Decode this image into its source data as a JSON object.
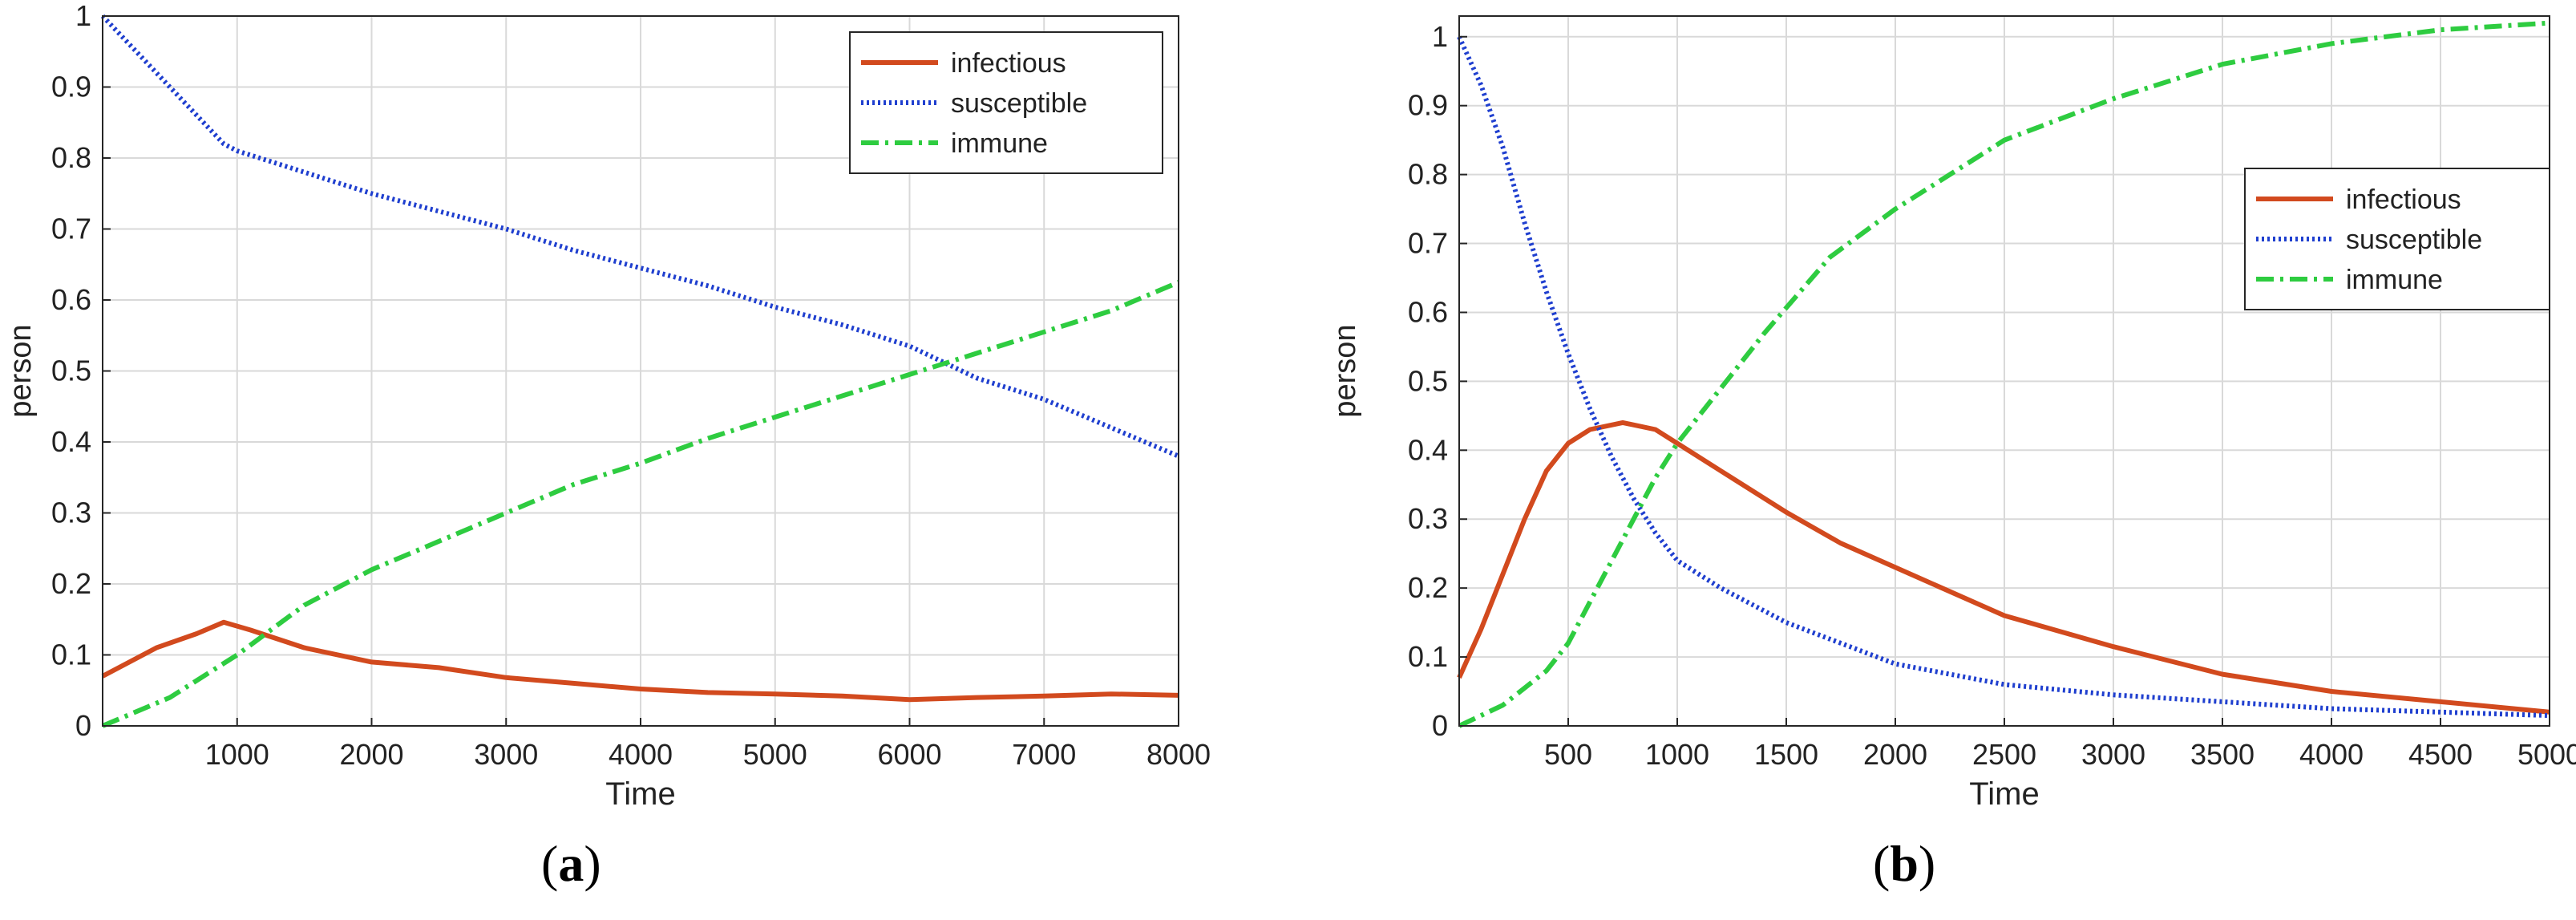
{
  "colors": {
    "infectious": "#d24a1e",
    "susceptible": "#1f3fcf",
    "immune": "#2ecc40",
    "grid": "#d9d9d9",
    "axis": "#262626"
  },
  "chart_data": [
    {
      "type": "line",
      "caption_letter": "a",
      "xlabel": "Time",
      "ylabel": "person",
      "xlim": [
        0,
        8000
      ],
      "ylim": [
        0,
        1
      ],
      "xticks": [
        1000,
        2000,
        3000,
        4000,
        5000,
        6000,
        7000,
        8000
      ],
      "xtick_labels": [
        "1000",
        "2000",
        "3000",
        "4000",
        "5000",
        "6000",
        "7000",
        "8000"
      ],
      "yticks": [
        0,
        0.1,
        0.2,
        0.3,
        0.4,
        0.5,
        0.6,
        0.7,
        0.8,
        0.9,
        1
      ],
      "ytick_labels": [
        "0",
        "0.1",
        "0.2",
        "0.3",
        "0.4",
        "0.5",
        "0.6",
        "0.7",
        "0.8",
        "0.9",
        "1"
      ],
      "grid": true,
      "legend_position": "top-right",
      "series": [
        {
          "name": "infectious",
          "style": "solid",
          "x": [
            0,
            400,
            700,
            900,
            1100,
            1500,
            2000,
            2500,
            3000,
            3500,
            4000,
            4500,
            5000,
            5500,
            6000,
            6500,
            7000,
            7500,
            8000
          ],
          "y": [
            0.07,
            0.11,
            0.13,
            0.146,
            0.135,
            0.11,
            0.09,
            0.082,
            0.068,
            0.06,
            0.052,
            0.047,
            0.045,
            0.042,
            0.037,
            0.04,
            0.042,
            0.045,
            0.043
          ]
        },
        {
          "name": "susceptible",
          "style": "dotted",
          "x": [
            0,
            300,
            600,
            900,
            1000,
            1500,
            2000,
            2500,
            3000,
            3500,
            4000,
            4500,
            5000,
            5500,
            6000,
            6500,
            7000,
            7500,
            8000
          ],
          "y": [
            1.0,
            0.94,
            0.88,
            0.82,
            0.81,
            0.78,
            0.75,
            0.725,
            0.7,
            0.67,
            0.645,
            0.62,
            0.59,
            0.565,
            0.535,
            0.49,
            0.46,
            0.42,
            0.38
          ]
        },
        {
          "name": "immune",
          "style": "dashdot",
          "x": [
            0,
            500,
            1000,
            1500,
            2000,
            2500,
            3000,
            3500,
            4000,
            4500,
            5000,
            5500,
            6000,
            6500,
            7000,
            7500,
            8000
          ],
          "y": [
            0.0,
            0.04,
            0.1,
            0.17,
            0.22,
            0.26,
            0.3,
            0.34,
            0.37,
            0.405,
            0.435,
            0.465,
            0.495,
            0.525,
            0.555,
            0.585,
            0.625
          ]
        }
      ]
    },
    {
      "type": "line",
      "caption_letter": "b",
      "xlabel": "Time",
      "ylabel": "person",
      "xlim": [
        0,
        5000
      ],
      "ylim": [
        0,
        1.03
      ],
      "xticks": [
        500,
        1000,
        1500,
        2000,
        2500,
        3000,
        3500,
        4000,
        4500,
        5000
      ],
      "xtick_labels": [
        "500",
        "1000",
        "1500",
        "2000",
        "2500",
        "3000",
        "3500",
        "4000",
        "4500",
        "5000"
      ],
      "yticks": [
        0,
        0.1,
        0.2,
        0.3,
        0.4,
        0.5,
        0.6,
        0.7,
        0.8,
        0.9,
        1
      ],
      "ytick_labels": [
        "0",
        "0.1",
        "0.2",
        "0.3",
        "0.4",
        "0.5",
        "0.6",
        "0.7",
        "0.8",
        "0.9",
        "1"
      ],
      "grid": true,
      "legend_position": "center-right",
      "series": [
        {
          "name": "infectious",
          "style": "solid",
          "x": [
            0,
            100,
            200,
            300,
            400,
            500,
            600,
            750,
            900,
            1000,
            1200,
            1500,
            1750,
            2000,
            2500,
            3000,
            3500,
            4000,
            4500,
            5000
          ],
          "y": [
            0.07,
            0.14,
            0.22,
            0.3,
            0.37,
            0.41,
            0.43,
            0.44,
            0.43,
            0.41,
            0.37,
            0.31,
            0.265,
            0.23,
            0.16,
            0.115,
            0.075,
            0.05,
            0.035,
            0.02
          ]
        },
        {
          "name": "susceptible",
          "style": "dotted",
          "x": [
            0,
            100,
            200,
            300,
            400,
            500,
            600,
            700,
            800,
            900,
            1000,
            1200,
            1500,
            2000,
            2500,
            3000,
            3500,
            4000,
            4500,
            5000
          ],
          "y": [
            1.0,
            0.93,
            0.84,
            0.73,
            0.63,
            0.54,
            0.46,
            0.39,
            0.33,
            0.28,
            0.24,
            0.2,
            0.15,
            0.09,
            0.06,
            0.045,
            0.035,
            0.025,
            0.02,
            0.015
          ]
        },
        {
          "name": "immune",
          "style": "dashdot",
          "x": [
            0,
            200,
            400,
            500,
            600,
            700,
            800,
            900,
            1000,
            1200,
            1400,
            1700,
            2000,
            2500,
            3000,
            3500,
            4000,
            4500,
            5000
          ],
          "y": [
            0.0,
            0.03,
            0.08,
            0.12,
            0.18,
            0.24,
            0.3,
            0.36,
            0.41,
            0.49,
            0.57,
            0.68,
            0.75,
            0.85,
            0.91,
            0.96,
            0.99,
            1.01,
            1.02
          ]
        }
      ]
    }
  ]
}
